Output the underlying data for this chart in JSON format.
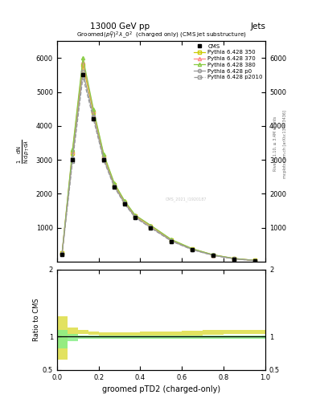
{
  "title_top": "13000 GeV pp",
  "title_right": "Jets",
  "plot_title": "Groomed$(p_T^D)^2\\,\\lambda\\_0^2$  (charged only) (CMS jet substructure)",
  "xlabel": "groomed pTD2 (charged-only)",
  "ylabel_main": "$\\frac{1}{\\mathrm{N}} \\frac{\\mathrm{d}\\mathrm{N}}{\\mathrm{d}\\,p_T\\,\\mathrm{d}\\lambda}$",
  "ylabel_ratio": "Ratio to CMS",
  "right_label1": "Rivet 3.1.10, ≥ 3.4M events",
  "right_label2": "mcplots.cern.ch [arXiv:1306.3436]",
  "watermark": "CMS_2021_I1920187",
  "x_bins": [
    0.0,
    0.05,
    0.1,
    0.15,
    0.2,
    0.25,
    0.3,
    0.35,
    0.4,
    0.5,
    0.6,
    0.7,
    0.8,
    0.9,
    1.0
  ],
  "cms_values": [
    200,
    3000,
    5500,
    4200,
    3000,
    2200,
    1700,
    1300,
    1000,
    600,
    350,
    180,
    80,
    30
  ],
  "p350_values": [
    250,
    3200,
    5800,
    4400,
    3100,
    2280,
    1750,
    1350,
    1050,
    630,
    370,
    195,
    90,
    35
  ],
  "p370_values": [
    260,
    3250,
    5900,
    4450,
    3130,
    2300,
    1770,
    1360,
    1060,
    640,
    375,
    198,
    92,
    36
  ],
  "p380_values": [
    270,
    3300,
    6000,
    4500,
    3160,
    2320,
    1790,
    1375,
    1070,
    650,
    380,
    200,
    95,
    37
  ],
  "p0_values": [
    230,
    3050,
    5600,
    4280,
    3020,
    2230,
    1715,
    1315,
    1010,
    610,
    355,
    185,
    82,
    31
  ],
  "p2010_values": [
    220,
    2950,
    5450,
    4200,
    2980,
    2200,
    1695,
    1300,
    995,
    600,
    348,
    182,
    80,
    30
  ],
  "ratio_yellow_lo": [
    0.65,
    1.02,
    1.04,
    1.03,
    1.02,
    1.02,
    1.02,
    1.02,
    1.02,
    1.02,
    1.02,
    1.03,
    1.04,
    1.04
  ],
  "ratio_yellow_hi": [
    1.3,
    1.14,
    1.1,
    1.08,
    1.06,
    1.06,
    1.06,
    1.06,
    1.07,
    1.08,
    1.09,
    1.1,
    1.1,
    1.1
  ],
  "ratio_green_lo": [
    0.82,
    0.93,
    0.97,
    0.97,
    0.97,
    0.97,
    0.97,
    0.97,
    0.97,
    0.97,
    0.97,
    0.97,
    0.97,
    0.97
  ],
  "ratio_green_hi": [
    1.1,
    1.04,
    1.02,
    1.02,
    1.02,
    1.02,
    1.02,
    1.02,
    1.02,
    1.02,
    1.02,
    1.02,
    1.02,
    1.02
  ],
  "color_cms": "#000000",
  "color_p350": "#cccc00",
  "color_p370": "#ff8888",
  "color_p380": "#88cc44",
  "color_p0": "#999999",
  "color_p2010": "#999999",
  "color_yellow": "#dddd44",
  "color_green": "#88ee88",
  "ylim_main": [
    0,
    6500
  ],
  "ylim_ratio": [
    0.5,
    2.0
  ],
  "xlim": [
    0.0,
    1.0
  ],
  "yticks_main": [
    1000,
    2000,
    3000,
    4000,
    5000,
    6000
  ],
  "yticks_ratio": [
    0.5,
    1.0,
    2.0
  ]
}
